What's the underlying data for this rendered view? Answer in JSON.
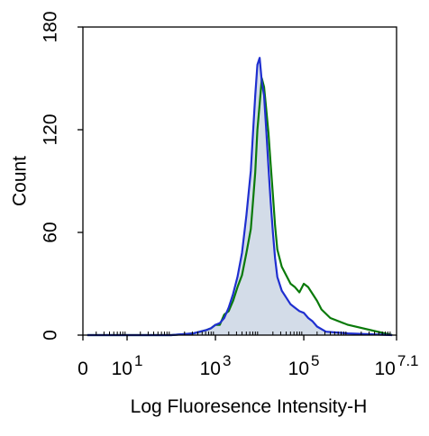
{
  "chart_data": {
    "type": "area",
    "xlabel": "Log Fluoresence Intensity-H",
    "ylabel": "Count",
    "xscale": "log",
    "xlim": [
      0,
      7.1
    ],
    "ylim": [
      0,
      180
    ],
    "yticks": [
      {
        "value": 0,
        "label": "0"
      },
      {
        "value": 60,
        "label": "60"
      },
      {
        "value": 120,
        "label": "120"
      },
      {
        "value": 180,
        "label": "180"
      }
    ],
    "xticks": [
      {
        "value": 0,
        "base": "0",
        "exp": ""
      },
      {
        "value": 1,
        "base": "10",
        "exp": "1"
      },
      {
        "value": 3,
        "base": "10",
        "exp": "3"
      },
      {
        "value": 5,
        "base": "10",
        "exp": "5"
      },
      {
        "value": 7.1,
        "base": "10",
        "exp": "7.1"
      }
    ],
    "grid": false,
    "legend": "none",
    "series": [
      {
        "color": "#0a7a0a",
        "style": "line",
        "x": [
          0.1,
          1.5,
          2.0,
          2.5,
          2.8,
          2.9,
          3.0,
          3.1,
          3.2,
          3.3,
          3.4,
          3.5,
          3.6,
          3.7,
          3.8,
          3.85,
          3.9,
          3.95,
          4.0,
          4.05,
          4.1,
          4.15,
          4.2,
          4.25,
          4.3,
          4.35,
          4.4,
          4.5,
          4.6,
          4.7,
          4.8,
          4.9,
          5.0,
          5.1,
          5.2,
          5.3,
          5.4,
          5.6,
          6.0,
          7.0
        ],
        "y": [
          0,
          0,
          0,
          1,
          3,
          4,
          6,
          6,
          12,
          14,
          20,
          28,
          35,
          48,
          62,
          78,
          95,
          120,
          135,
          150,
          145,
          132,
          118,
          100,
          82,
          64,
          50,
          40,
          35,
          30,
          28,
          25,
          30,
          28,
          24,
          20,
          15,
          10,
          6,
          0
        ]
      },
      {
        "color": "#1f2fd0",
        "fill": "#d3dce8",
        "style": "filled",
        "x": [
          0.1,
          1.5,
          2.0,
          2.5,
          2.8,
          2.9,
          3.0,
          3.1,
          3.2,
          3.3,
          3.4,
          3.5,
          3.6,
          3.7,
          3.8,
          3.85,
          3.9,
          3.95,
          4.0,
          4.05,
          4.1,
          4.15,
          4.2,
          4.25,
          4.3,
          4.35,
          4.4,
          4.5,
          4.6,
          4.7,
          4.8,
          4.9,
          5.0,
          5.1,
          5.2,
          5.3,
          5.5,
          6.0,
          7.0
        ],
        "y": [
          0,
          0,
          0,
          1,
          3,
          4,
          6,
          7,
          10,
          16,
          24,
          34,
          48,
          70,
          96,
          118,
          140,
          158,
          162,
          148,
          140,
          120,
          98,
          78,
          60,
          45,
          34,
          26,
          22,
          18,
          16,
          14,
          13,
          10,
          8,
          5,
          2,
          1,
          0
        ]
      }
    ]
  }
}
